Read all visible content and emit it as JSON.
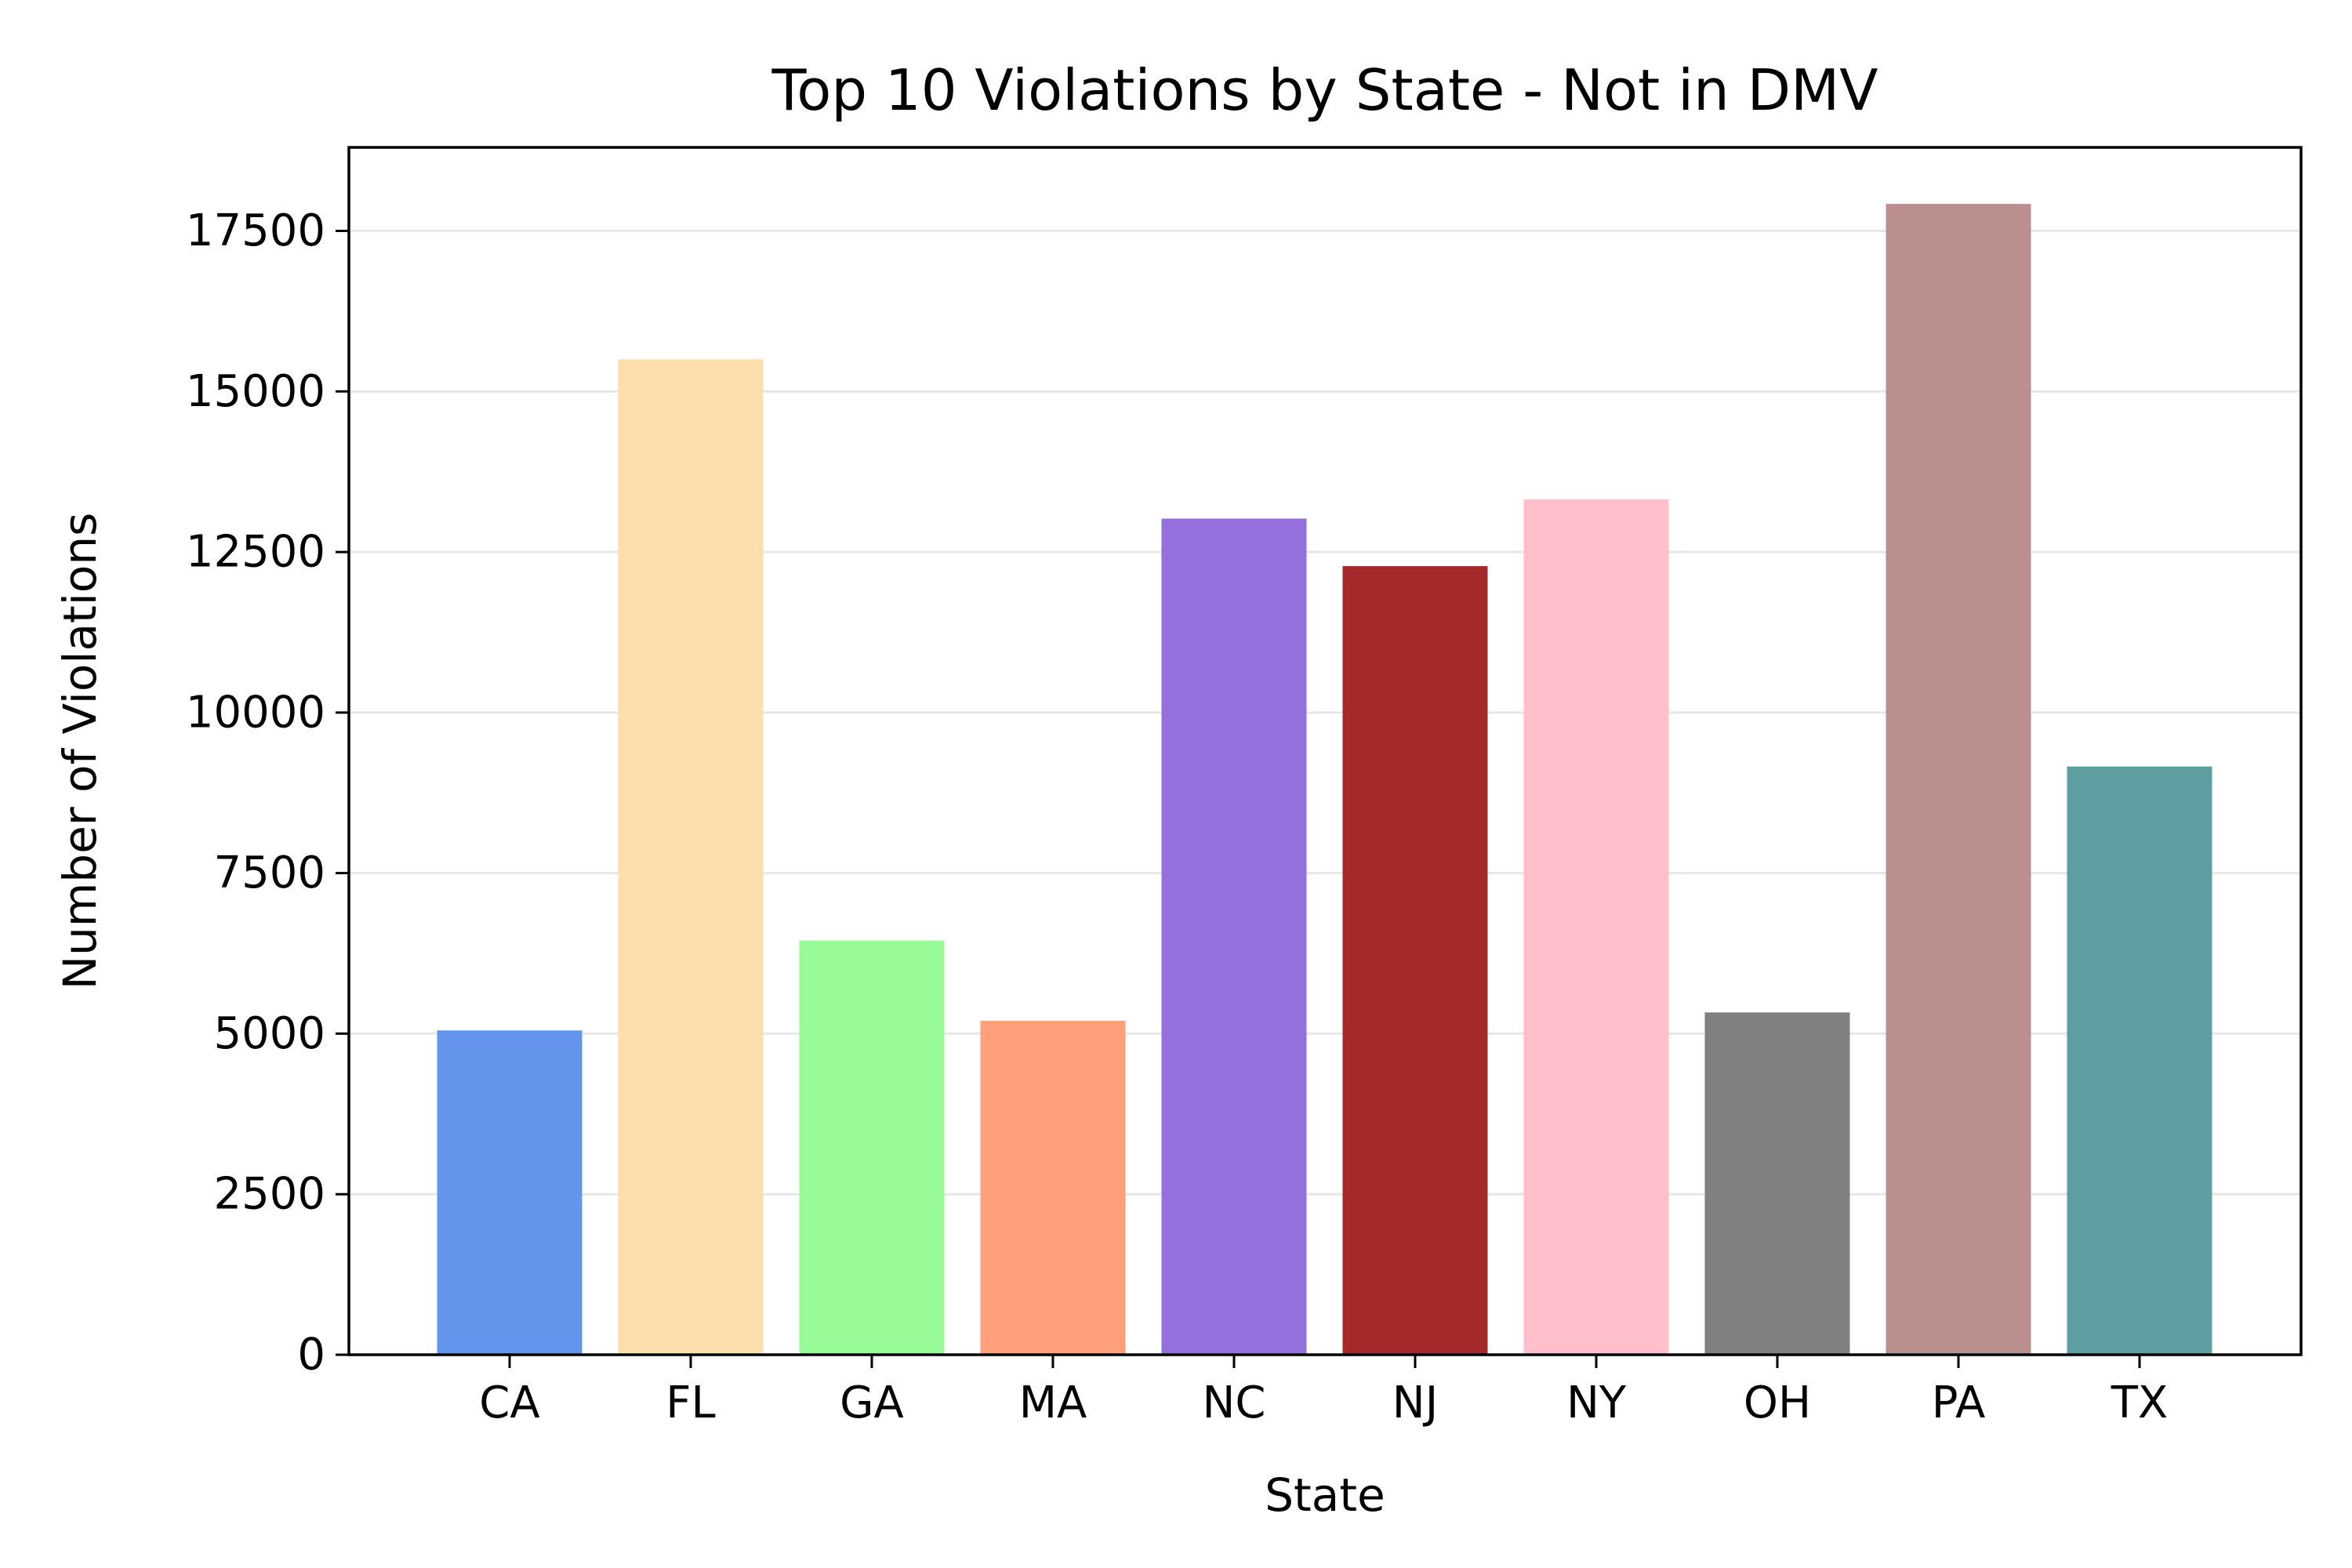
{
  "chart_data": {
    "type": "bar",
    "title": "Top 10 Violations by State - Not in DMV",
    "xlabel": "State",
    "ylabel": "Number of Violations",
    "categories": [
      "CA",
      "FL",
      "GA",
      "MA",
      "NC",
      "NJ",
      "NY",
      "OH",
      "PA",
      "TX"
    ],
    "values": [
      5050,
      15500,
      6450,
      5200,
      13020,
      12280,
      13320,
      5330,
      17920,
      9160
    ],
    "colors": [
      "#6495ED",
      "#FFDEAD",
      "#98FB98",
      "#FFA07A",
      "#9370DB",
      "#A52A2A",
      "#FFC0CB",
      "#808080",
      "#BC8F8F",
      "#5F9EA0"
    ],
    "ylim": [
      0,
      18800
    ],
    "yticks": [
      0,
      2500,
      5000,
      7500,
      10000,
      12500,
      15000,
      17500
    ],
    "grid": "horizontal",
    "legend": "none"
  }
}
